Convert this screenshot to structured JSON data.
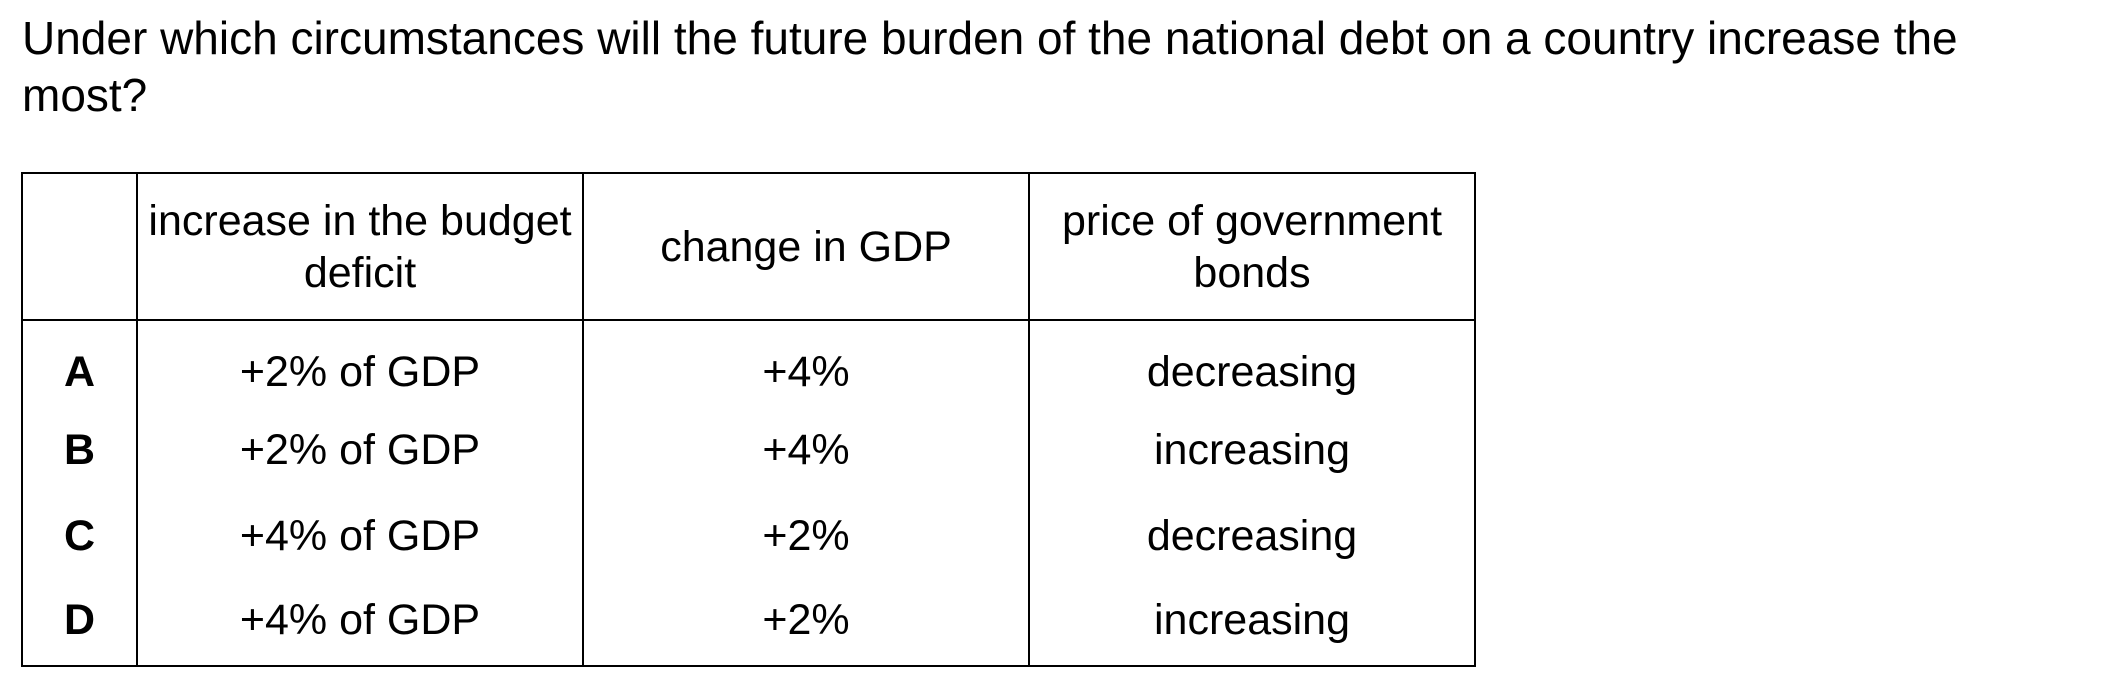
{
  "question": {
    "text": "Under which circumstances will the future burden of the national debt on a country increase the most?"
  },
  "table": {
    "headers": {
      "letter": "",
      "deficit": "increase in the budget deficit",
      "gdp": "change in GDP",
      "bonds": "price of government bonds"
    },
    "rows": [
      {
        "letter": "A",
        "deficit": "+2% of GDP",
        "gdp": "+4%",
        "bonds": "decreasing"
      },
      {
        "letter": "B",
        "deficit": "+2% of GDP",
        "gdp": "+4%",
        "bonds": "increasing"
      },
      {
        "letter": "C",
        "deficit": "+4% of GDP",
        "gdp": "+2%",
        "bonds": "decreasing"
      },
      {
        "letter": "D",
        "deficit": "+4% of GDP",
        "gdp": "+2%",
        "bonds": "increasing"
      }
    ]
  }
}
